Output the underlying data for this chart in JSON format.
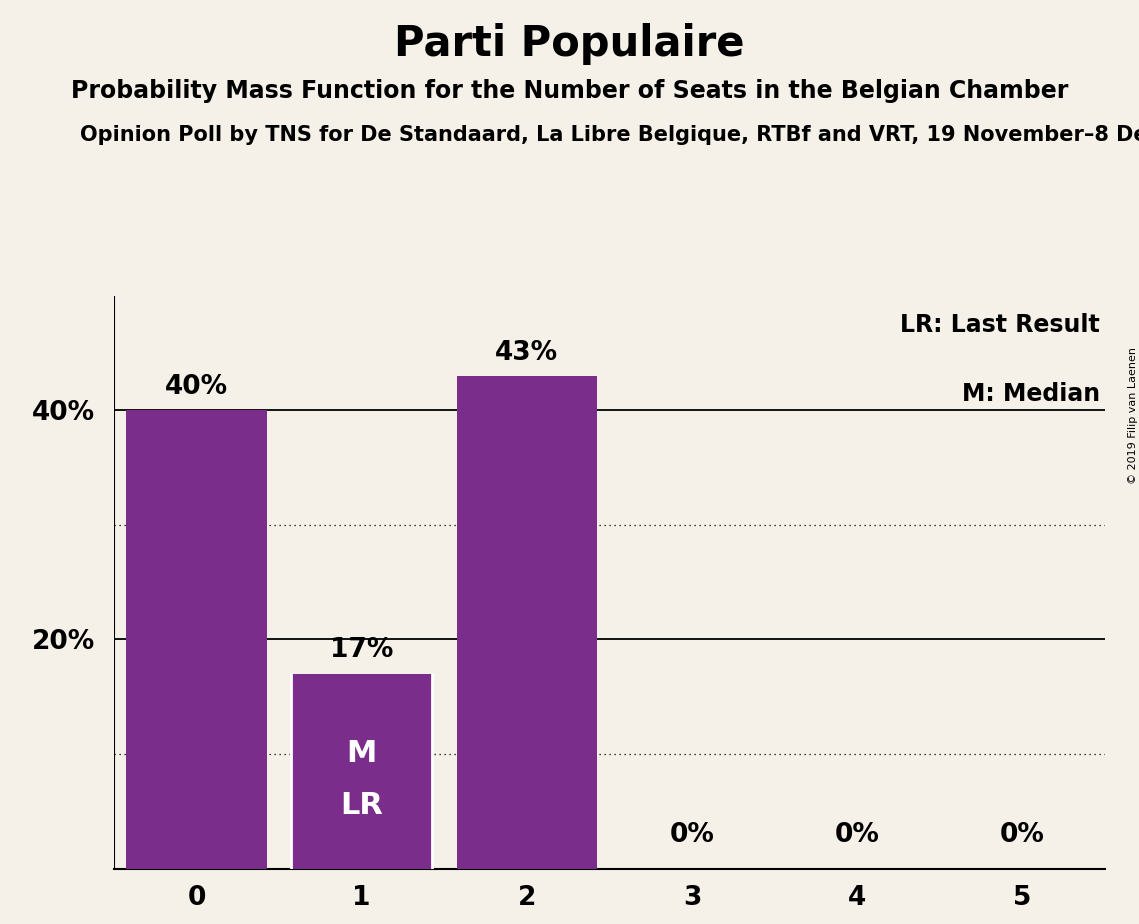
{
  "title": "Parti Populaire",
  "subtitle": "Probability Mass Function for the Number of Seats in the Belgian Chamber",
  "source": "Opinion Poll by TNS for De Standaard, La Libre Belgique, RTBf and VRT, 19 November–8 De",
  "copyright": "© 2019 Filip van Laenen",
  "categories": [
    0,
    1,
    2,
    3,
    4,
    5
  ],
  "values": [
    0.4,
    0.17,
    0.43,
    0.0,
    0.0,
    0.0
  ],
  "bar_color": "#7B2D8B",
  "background_color": "#F5F0E8",
  "bar_labels": [
    "40%",
    "17%",
    "43%",
    "0%",
    "0%",
    "0%"
  ],
  "ylim": [
    0,
    0.5
  ],
  "yticks": [
    0.2,
    0.4
  ],
  "ytick_labels": [
    "20%",
    "40%"
  ],
  "grid_solid": [
    0.2,
    0.4
  ],
  "grid_dotted": [
    0.1,
    0.3
  ],
  "median_bar": 1,
  "lr_bar": 1,
  "legend_lr": "LR: Last Result",
  "legend_m": "M: Median",
  "title_fontsize": 30,
  "subtitle_fontsize": 17,
  "source_fontsize": 15,
  "bar_label_fontsize": 19,
  "axis_tick_fontsize": 19,
  "inside_label_fontsize": 22,
  "legend_fontsize": 17
}
